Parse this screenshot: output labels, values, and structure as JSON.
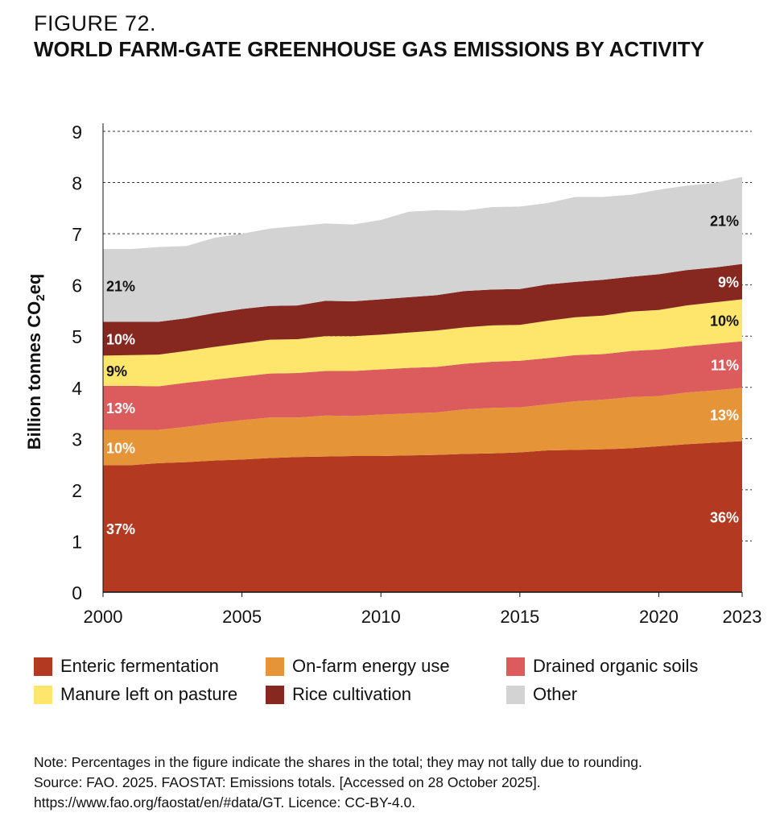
{
  "figure_number": "FIGURE 72.",
  "title": "WORLD FARM-GATE GREENHOUSE GAS EMISSIONS BY ACTIVITY",
  "chart_data": {
    "type": "area",
    "stacked": true,
    "ylabel": "Billion tonnes CO2eq",
    "ylabel_main": "Billion tonnes CO",
    "ylabel_sub": "2",
    "ylabel_tail": "eq",
    "ylim": [
      0,
      9
    ],
    "yticks": [
      "0",
      "1",
      "2",
      "3",
      "4",
      "5",
      "6",
      "7",
      "8",
      "9"
    ],
    "xticks": [
      "2000",
      "2005",
      "2010",
      "2015",
      "2020",
      "2023"
    ],
    "grid": "dashed horizontal",
    "legend_position": "bottom",
    "x": [
      2000,
      2001,
      2002,
      2003,
      2004,
      2005,
      2006,
      2007,
      2008,
      2009,
      2010,
      2011,
      2012,
      2013,
      2014,
      2015,
      2016,
      2017,
      2018,
      2019,
      2020,
      2021,
      2022,
      2023
    ],
    "series": [
      {
        "name": "Enteric fermentation",
        "color": "#b33a20",
        "label_color": "#ffffff",
        "start_label": "37%",
        "end_label": "36%",
        "values": [
          2.48,
          2.48,
          2.52,
          2.54,
          2.57,
          2.59,
          2.62,
          2.64,
          2.65,
          2.66,
          2.66,
          2.67,
          2.68,
          2.7,
          2.71,
          2.73,
          2.77,
          2.78,
          2.79,
          2.81,
          2.85,
          2.89,
          2.92,
          2.95
        ]
      },
      {
        "name": "On-farm energy use",
        "color": "#e69438",
        "label_color": "#ffffff",
        "start_label": "10%",
        "end_label": "13%",
        "values": [
          0.69,
          0.69,
          0.65,
          0.69,
          0.73,
          0.77,
          0.79,
          0.77,
          0.8,
          0.78,
          0.81,
          0.82,
          0.83,
          0.87,
          0.89,
          0.88,
          0.9,
          0.95,
          0.97,
          1.0,
          0.98,
          1.01,
          1.02,
          1.04
        ]
      },
      {
        "name": "Drained organic soils",
        "color": "#dc5b5c",
        "label_color": "#ffffff",
        "start_label": "13%",
        "end_label": "11%",
        "values": [
          0.86,
          0.86,
          0.85,
          0.86,
          0.85,
          0.85,
          0.86,
          0.87,
          0.87,
          0.88,
          0.88,
          0.89,
          0.89,
          0.89,
          0.9,
          0.91,
          0.9,
          0.9,
          0.89,
          0.9,
          0.91,
          0.9,
          0.91,
          0.91
        ]
      },
      {
        "name": "Manure left on pasture",
        "color": "#fde66b",
        "label_color": "#111111",
        "start_label": "9%",
        "end_label": "10%",
        "values": [
          0.59,
          0.6,
          0.62,
          0.62,
          0.64,
          0.65,
          0.66,
          0.66,
          0.68,
          0.68,
          0.68,
          0.69,
          0.71,
          0.71,
          0.71,
          0.7,
          0.73,
          0.74,
          0.75,
          0.77,
          0.77,
          0.8,
          0.81,
          0.82
        ]
      },
      {
        "name": "Rice cultivation",
        "color": "#862720",
        "label_color": "#ffffff",
        "start_label": "10%",
        "end_label": "9%",
        "values": [
          0.66,
          0.65,
          0.64,
          0.64,
          0.66,
          0.67,
          0.66,
          0.66,
          0.69,
          0.68,
          0.69,
          0.69,
          0.69,
          0.71,
          0.7,
          0.7,
          0.71,
          0.69,
          0.7,
          0.68,
          0.7,
          0.69,
          0.68,
          0.69
        ]
      },
      {
        "name": "Other",
        "color": "#d3d3d3",
        "label_color": "#111111",
        "start_label": "21%",
        "end_label": "21%",
        "values": [
          1.42,
          1.42,
          1.46,
          1.41,
          1.47,
          1.47,
          1.51,
          1.55,
          1.51,
          1.5,
          1.55,
          1.67,
          1.66,
          1.57,
          1.61,
          1.61,
          1.59,
          1.66,
          1.62,
          1.6,
          1.65,
          1.65,
          1.65,
          1.7
        ]
      }
    ]
  },
  "legend_order": [
    0,
    1,
    2,
    3,
    4,
    5
  ],
  "note": {
    "line1": "Note: Percentages in the figure indicate the shares in the total; they may not tally due to rounding.",
    "line2": "Source: FAO. 2025. FAOSTAT: Emissions totals. [Accessed on 28 October 2025].",
    "line3": "https://www.fao.org/faostat/en/#data/GT. Licence: CC-BY-4.0."
  }
}
